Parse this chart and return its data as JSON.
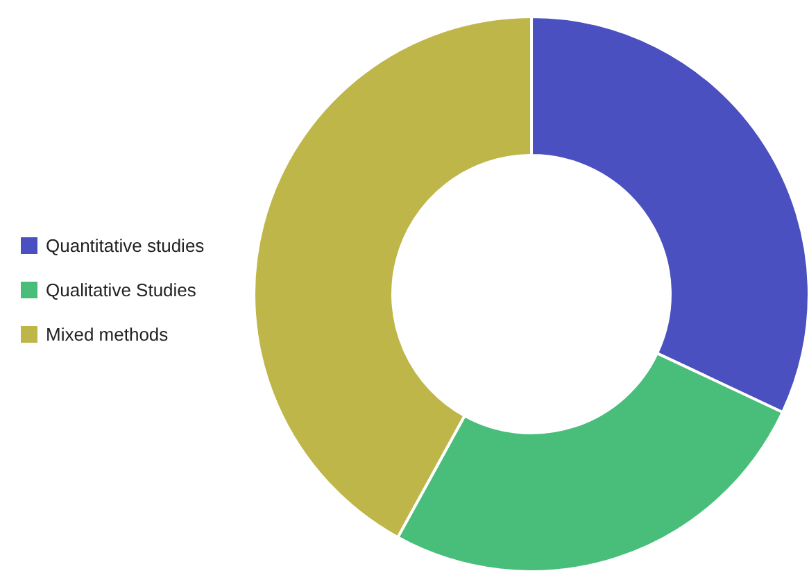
{
  "chart_data": {
    "type": "donut",
    "categories": [
      "Quantitative studies",
      "Qualitative Studies",
      "Mixed methods"
    ],
    "values": [
      32,
      26,
      42
    ],
    "colors": [
      "#4a50bf",
      "#49bd7a",
      "#bfb64a"
    ],
    "legend": "left"
  }
}
